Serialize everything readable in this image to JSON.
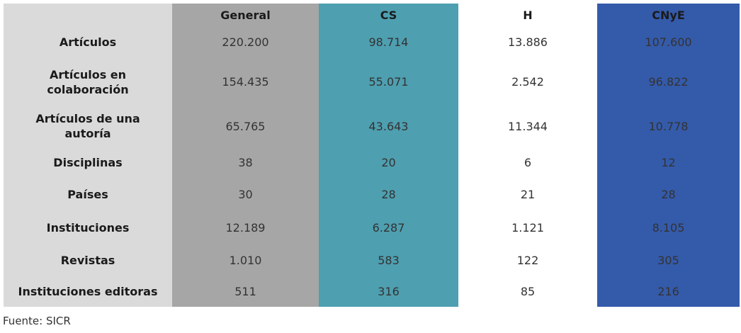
{
  "table": {
    "columns": [
      "",
      "General",
      "CS",
      "H",
      "CNyE"
    ],
    "rows": [
      {
        "label": "Artículos",
        "values": [
          "220.200",
          "98.714",
          "13.886",
          "107.600"
        ]
      },
      {
        "label": "Artículos en colaboración",
        "values": [
          "154.435",
          "55.071",
          "2.542",
          "96.822"
        ]
      },
      {
        "label": "Artículos de una autoría",
        "values": [
          "65.765",
          "43.643",
          "11.344",
          "10.778"
        ]
      },
      {
        "label": "Disciplinas",
        "values": [
          "38",
          "20",
          "6",
          "12"
        ]
      },
      {
        "label": "Países",
        "values": [
          "30",
          "28",
          "21",
          "28"
        ]
      },
      {
        "label": "Instituciones",
        "values": [
          "12.189",
          "6.287",
          "1.121",
          "8.105"
        ]
      },
      {
        "label": "Revistas",
        "values": [
          "1.010",
          "583",
          "122",
          "305"
        ]
      },
      {
        "label": "Instituciones editoras",
        "values": [
          "511",
          "316",
          "85",
          "216"
        ]
      }
    ]
  },
  "column_colors": {
    "label": "#dadada",
    "General": "#a6a6a6",
    "CS": "#4e9fb0",
    "H": "#ffffff",
    "CNyE": "#345aaa"
  },
  "source": "Fuente: SICR"
}
